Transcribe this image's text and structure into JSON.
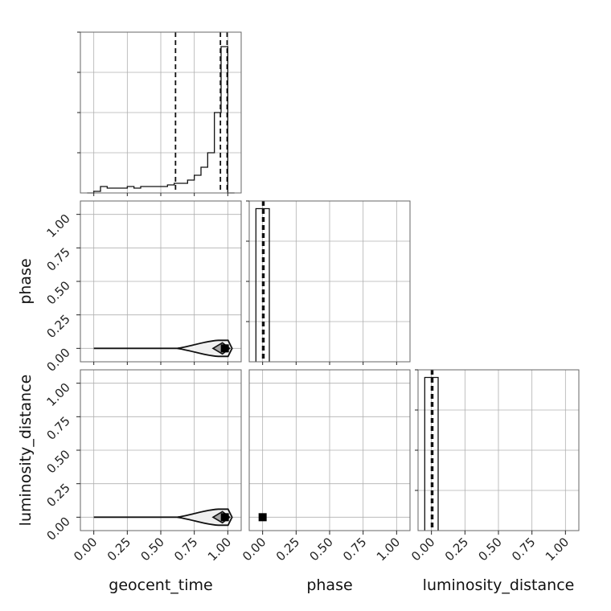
{
  "chart_data": {
    "type": "corner",
    "parameters": [
      "geocent_time",
      "phase",
      "luminosity_distance"
    ],
    "ticks": [
      "0.00",
      "0.25",
      "0.50",
      "0.75",
      "1.00"
    ],
    "axis_range": [
      -0.1,
      1.1
    ],
    "grid": true,
    "histograms": [
      {
        "parameter": "geocent_time",
        "bin_edges": [
          -0.05,
          0.0,
          0.05,
          0.1,
          0.15,
          0.2,
          0.25,
          0.3,
          0.35,
          0.4,
          0.45,
          0.5,
          0.55,
          0.6,
          0.65,
          0.7,
          0.75,
          0.8,
          0.85,
          0.9,
          0.95,
          1.0,
          1.05
        ],
        "counts": [
          0.0,
          0.01,
          0.04,
          0.03,
          0.03,
          0.03,
          0.04,
          0.03,
          0.04,
          0.04,
          0.04,
          0.04,
          0.05,
          0.06,
          0.06,
          0.08,
          0.11,
          0.16,
          0.25,
          0.5,
          0.91,
          0.0
        ],
        "count_ylim": [
          0,
          1.0
        ],
        "quantiles": [
          0.61,
          0.945,
          0.995
        ]
      },
      {
        "parameter": "phase",
        "bin_edges": [
          -0.05,
          0.0,
          0.05
        ],
        "counts": [
          1.0,
          1.0
        ],
        "count_ylim": [
          0,
          1.05
        ],
        "quantiles": [
          0.0,
          0.005,
          0.01
        ]
      },
      {
        "parameter": "luminosity_distance",
        "bin_edges": [
          -0.05,
          0.0,
          0.05
        ],
        "counts": [
          1.0,
          1.0
        ],
        "count_ylim": [
          0,
          1.05
        ],
        "quantiles": [
          0.0,
          0.005,
          0.01
        ]
      }
    ],
    "pairs": [
      {
        "x": "geocent_time",
        "y": "phase",
        "kind": "contour",
        "ridge_y": 0.0,
        "peak_x": 0.99
      },
      {
        "x": "geocent_time",
        "y": "luminosity_distance",
        "kind": "contour",
        "ridge_y": 0.0,
        "peak_x": 0.99
      },
      {
        "x": "phase",
        "y": "luminosity_distance",
        "kind": "point",
        "point": [
          0.0,
          0.0
        ]
      }
    ]
  }
}
